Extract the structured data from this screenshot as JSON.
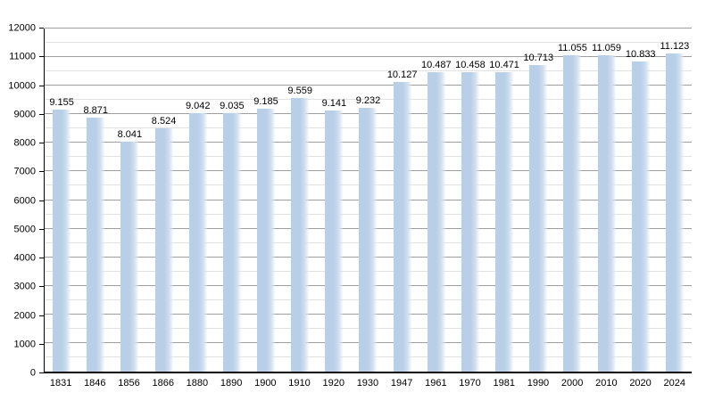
{
  "chart_data": {
    "type": "bar",
    "title": "",
    "xlabel": "",
    "ylabel": "",
    "grid": "on",
    "legend": null,
    "categories": [
      "1831",
      "1846",
      "1856",
      "1866",
      "1880",
      "1890",
      "1900",
      "1910",
      "1920",
      "1930",
      "1947",
      "1961",
      "1970",
      "1981",
      "1990",
      "2000",
      "2010",
      "2020",
      "2024"
    ],
    "values": [
      9155,
      8871,
      8041,
      8524,
      9042,
      9035,
      9185,
      9559,
      9141,
      9232,
      10127,
      10487,
      10458,
      10471,
      10713,
      11055,
      11059,
      10833,
      11123
    ],
    "value_labels": [
      "9.155",
      "8.871",
      "8.041",
      "8.524",
      "9.042",
      "9.035",
      "9.185",
      "9.559",
      "9.141",
      "9.232",
      "10.127",
      "10.487",
      "10.458",
      "10.471",
      "10.713",
      "11.055",
      "11.059",
      "10.833",
      "11.123"
    ],
    "y_ticks": [
      "0",
      "1000",
      "2000",
      "3000",
      "4000",
      "5000",
      "6000",
      "7000",
      "8000",
      "9000",
      "10000",
      "11000",
      "12000"
    ],
    "ylim": [
      0,
      12000
    ],
    "y_major_step": 1000,
    "y_minor_step": 500,
    "bar_color": "#b9cfe7",
    "bar_color_light": "#cfdff0",
    "bar_color_fade": "rgba(236,243,250,0.3)",
    "gridline_major_color": "#9e9e9e",
    "gridline_minor_color": "#e2e2e2",
    "axis_color": "#000000"
  }
}
